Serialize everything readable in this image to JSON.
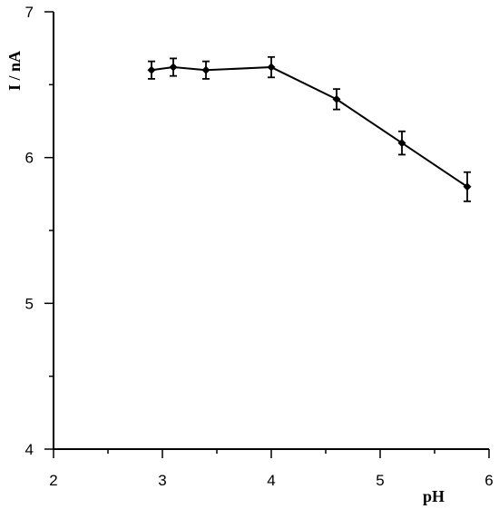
{
  "chart_data": {
    "type": "line",
    "xlabel": "pH",
    "ylabel": "I / nA",
    "xlim": [
      2,
      6
    ],
    "ylim": [
      4,
      7
    ],
    "x_ticks": [
      2,
      3,
      4,
      5,
      6
    ],
    "y_ticks": [
      4,
      5,
      6,
      7
    ],
    "grid": false,
    "series": [
      {
        "x": [
          2.9,
          3.1,
          3.4,
          4.0,
          4.6,
          5.2,
          5.8
        ],
        "y": [
          6.6,
          6.62,
          6.6,
          6.62,
          6.4,
          6.1,
          5.8
        ],
        "error": [
          0.06,
          0.06,
          0.06,
          0.07,
          0.07,
          0.08,
          0.1
        ],
        "color": "#000000"
      }
    ]
  }
}
